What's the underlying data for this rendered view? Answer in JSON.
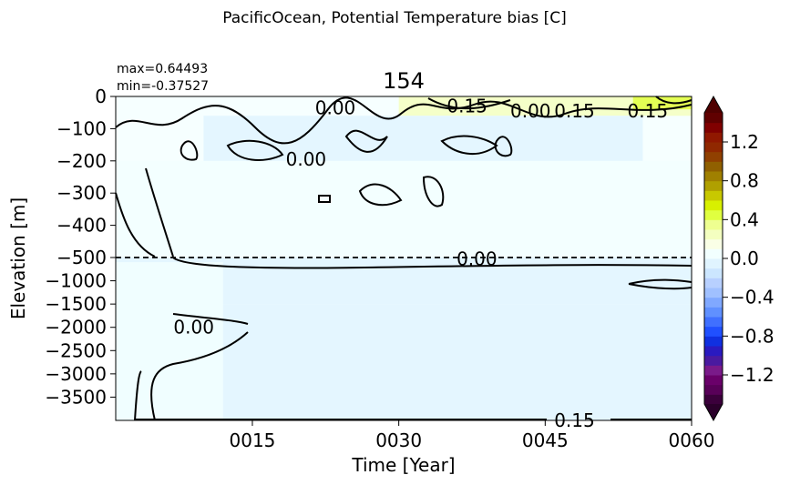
{
  "figure": {
    "suptitle": "PacificOcean, Potential Temperature bias [C]",
    "title": "154",
    "stats_max": "max=0.64493",
    "stats_min": "min=-0.37527"
  },
  "chart_data": {
    "type": "heatmap",
    "xlabel": "Time [Year]",
    "ylabel": "Elevation [m]",
    "xlim": [
      1,
      60
    ],
    "x_ticks": [
      15,
      30,
      45,
      60
    ],
    "x_tick_labels": [
      "0015",
      "0030",
      "0045",
      "0060"
    ],
    "y_upper_ticks": [
      0,
      -100,
      -200,
      -300,
      -400,
      -500
    ],
    "y_upper_tick_labels": [
      "0",
      "−100",
      "−200",
      "−300",
      "−400",
      "−500"
    ],
    "y_lower_ticks": [
      -1000,
      -1500,
      -2000,
      -2500,
      -3000,
      -3500
    ],
    "y_lower_tick_labels": [
      "−1000",
      "−1500",
      "−2000",
      "−2500",
      "−3000",
      "−3500"
    ],
    "y_upper_range": [
      -500,
      0
    ],
    "y_lower_range": [
      -4000,
      -500
    ],
    "dashed_line_at": -500,
    "contour_labels": [
      {
        "text": "0.00",
        "x": 23.5,
        "y": -35
      },
      {
        "text": "0.15",
        "x": 37,
        "y": -30
      },
      {
        "text": "0.00",
        "x": 43.5,
        "y": -45
      },
      {
        "text": "0.15",
        "x": 48,
        "y": -45
      },
      {
        "text": "0.15",
        "x": 55.5,
        "y": -45
      },
      {
        "text": "0.00",
        "x": 20.5,
        "y": -195
      },
      {
        "text": "0.00",
        "x": 38,
        "y": -530
      },
      {
        "text": "0.00",
        "x": 9,
        "y": -2000
      },
      {
        "text": "0.15",
        "x": 48,
        "y": -4000
      }
    ],
    "bias_regions": [
      {
        "x0": 30,
        "x1": 60,
        "y0": -60,
        "y1": 0,
        "value": 0.2
      },
      {
        "x0": 54,
        "x1": 60,
        "y0": -40,
        "y1": 0,
        "value": 0.45
      },
      {
        "x0": 10,
        "x1": 55,
        "y0": -200,
        "y1": -60,
        "value": -0.05
      },
      {
        "x0": 1,
        "x1": 60,
        "y0": -500,
        "y1": -200,
        "value": 0.03
      },
      {
        "x0": 1,
        "x1": 60,
        "y0": -1500,
        "y1": -500,
        "value": -0.05
      },
      {
        "x0": 1,
        "x1": 60,
        "y0": -4000,
        "y1": -1500,
        "value": -0.02
      },
      {
        "x0": 1,
        "x1": 12,
        "y0": -4000,
        "y1": -600,
        "value": 0.02
      }
    ]
  },
  "colorbar": {
    "range": [
      -1.5,
      1.5
    ],
    "ticks": [
      1.2,
      0.8,
      0.4,
      0.0,
      -0.4,
      -0.8,
      -1.2
    ],
    "tick_labels": [
      "1.2",
      "0.8",
      "0.4",
      "0.0",
      "−0.4",
      "−0.8",
      "−1.2"
    ],
    "levels": [
      "#3b003b",
      "#580058",
      "#6a006a",
      "#7a1a8a",
      "#4a1aa0",
      "#2a1ac0",
      "#1030e0",
      "#2050ff",
      "#4070ff",
      "#6090ff",
      "#80a8ff",
      "#a0c0ff",
      "#b8d0ff",
      "#cce6ff",
      "#e0f4ff",
      "#f2ffff",
      "#faffe6",
      "#f4ffc0",
      "#eeff90",
      "#e0ff40",
      "#d8f000",
      "#c8c800",
      "#b0a000",
      "#a08000",
      "#906000",
      "#904000",
      "#902800",
      "#901800",
      "#800000",
      "#600000"
    ],
    "under_color": "#2a002a",
    "over_color": "#500000"
  }
}
